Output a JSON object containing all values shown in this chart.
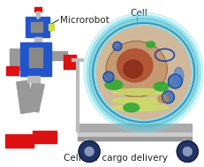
{
  "bg_color": "#ffffff",
  "label_microrobot": "Microrobot",
  "label_cell": "Cell",
  "label_cargo": "Cellular cargo delivery",
  "label_fontsize": 7.5,
  "label_color": "#222222",
  "figsize": [
    2.31,
    1.89
  ],
  "dpi": 100
}
